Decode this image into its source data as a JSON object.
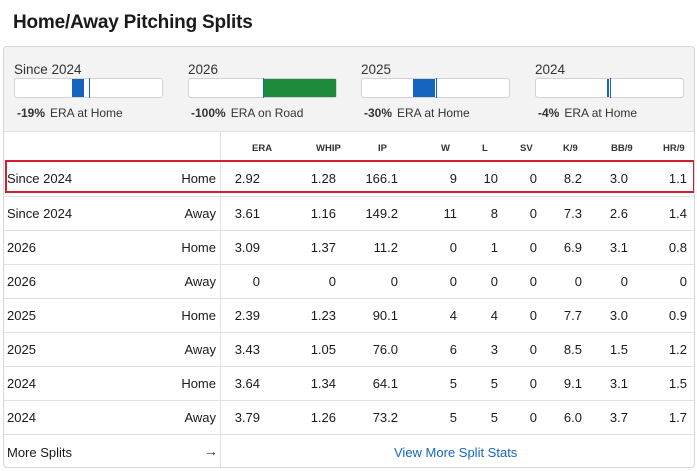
{
  "title": "Home/Away Pitching Splits",
  "summary": [
    {
      "label": "Since 2024",
      "delta": "-19%",
      "desc": "ERA at Home",
      "fill_color": "blue",
      "fill_start": 0.39,
      "fill_end": 0.47
    },
    {
      "label": "2026",
      "delta": "-100%",
      "desc": "ERA on Road",
      "fill_color": "green",
      "fill_start": 0.5,
      "fill_end": 1.0
    },
    {
      "label": "2025",
      "delta": "-30%",
      "desc": "ERA at Home",
      "fill_color": "blue",
      "fill_start": 0.35,
      "fill_end": 0.5
    },
    {
      "label": "2024",
      "delta": "-4%",
      "desc": "ERA at Home",
      "fill_color": "blue",
      "fill_start": 0.48,
      "fill_end": 0.5
    }
  ],
  "columns": [
    "ERA",
    "WHIP",
    "IP",
    "W",
    "L",
    "SV",
    "K/9",
    "BB/9",
    "HR/9"
  ],
  "rows": [
    {
      "period": "Since 2024",
      "loc": "Home",
      "vals": [
        "2.92",
        "1.28",
        "166.1",
        "9",
        "10",
        "0",
        "8.2",
        "3.0",
        "1.1"
      ]
    },
    {
      "period": "Since 2024",
      "loc": "Away",
      "vals": [
        "3.61",
        "1.16",
        "149.2",
        "11",
        "8",
        "0",
        "7.3",
        "2.6",
        "1.4"
      ]
    },
    {
      "period": "2026",
      "loc": "Home",
      "vals": [
        "3.09",
        "1.37",
        "11.2",
        "0",
        "1",
        "0",
        "6.9",
        "3.1",
        "0.8"
      ]
    },
    {
      "period": "2026",
      "loc": "Away",
      "vals": [
        "0",
        "0",
        "0",
        "0",
        "0",
        "0",
        "0",
        "0",
        "0"
      ]
    },
    {
      "period": "2025",
      "loc": "Home",
      "vals": [
        "2.39",
        "1.23",
        "90.1",
        "4",
        "4",
        "0",
        "7.7",
        "3.0",
        "0.9"
      ]
    },
    {
      "period": "2025",
      "loc": "Away",
      "vals": [
        "3.43",
        "1.05",
        "76.0",
        "6",
        "3",
        "0",
        "8.5",
        "1.5",
        "1.2"
      ]
    },
    {
      "period": "2024",
      "loc": "Home",
      "vals": [
        "3.64",
        "1.34",
        "64.1",
        "5",
        "5",
        "0",
        "9.1",
        "3.1",
        "1.5"
      ]
    },
    {
      "period": "2024",
      "loc": "Away",
      "vals": [
        "3.79",
        "1.26",
        "73.2",
        "5",
        "5",
        "0",
        "6.0",
        "3.7",
        "1.7"
      ]
    }
  ],
  "footer": {
    "more_splits": "More Splits",
    "arrow": "→",
    "view_more": "View More Split Stats"
  }
}
